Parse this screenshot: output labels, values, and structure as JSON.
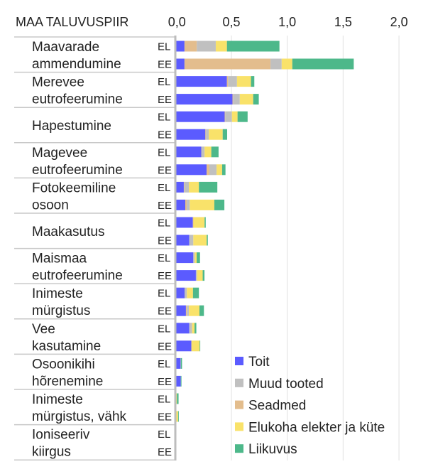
{
  "chart_data": {
    "type": "bar",
    "orientation": "horizontal",
    "stacked": true,
    "row_header": "MAA TALUVUSPIIR",
    "xlim": [
      0,
      2.0
    ],
    "x_ticks": [
      "0,0",
      "0,5",
      "1,0",
      "1,5",
      "2,0"
    ],
    "x_tick_values": [
      0,
      0.5,
      1.0,
      1.5,
      2.0
    ],
    "grid": true,
    "legend_position": "bottom-right",
    "sub_labels": [
      "EL",
      "EE"
    ],
    "categories": [
      {
        "label": [
          "Maavarade",
          "ammendumine"
        ]
      },
      {
        "label": [
          "Merevee",
          "eutrofeerumine"
        ]
      },
      {
        "label": [
          "Hapestumine"
        ]
      },
      {
        "label": [
          "Magevee",
          "eutrofeerumine"
        ]
      },
      {
        "label": [
          "Fotokeemiline",
          "osoon"
        ]
      },
      {
        "label": [
          "Maakasutus"
        ]
      },
      {
        "label": [
          "Maismaa",
          "eutrofeerumine"
        ]
      },
      {
        "label": [
          "Inimeste",
          "mürgistus"
        ]
      },
      {
        "label": [
          "Vee",
          "kasutamine"
        ]
      },
      {
        "label": [
          "Osoonikihi",
          "hõrenemine"
        ]
      },
      {
        "label": [
          "Inimeste",
          "mürgistus, vähk"
        ]
      },
      {
        "label": [
          "Ioniseeriv",
          "kiirgus"
        ]
      }
    ],
    "series": [
      {
        "name": "Toit",
        "color": "#5b5bff",
        "EL": [
          0.08,
          0.46,
          0.44,
          0.23,
          0.074,
          0.155,
          0.159,
          0.081,
          0.123,
          0.045,
          0.0,
          0.0
        ],
        "EE": [
          0.08,
          0.51,
          0.267,
          0.278,
          0.087,
          0.123,
          0.182,
          0.093,
          0.142,
          0.047,
          0.0,
          0.0
        ]
      },
      {
        "name": "Seadmed",
        "color": "#e3bd8d",
        "EL": [
          0.11,
          0.01,
          0.005,
          0.0,
          0.005,
          0.005,
          0.0,
          0.0,
          0.0,
          0.0,
          0.0,
          0.0
        ],
        "EE": [
          0.77,
          0.005,
          0.005,
          0.025,
          0.013,
          0.0,
          0.0,
          0.008,
          0.0,
          0.0,
          0.0,
          0.0
        ]
      },
      {
        "name": "Muud tooted",
        "color": "#c0c0c0",
        "EL": [
          0.17,
          0.08,
          0.06,
          0.03,
          0.04,
          0.0,
          0.013,
          0.02,
          0.025,
          0.003,
          0.0,
          0.0
        ],
        "EE": [
          0.1,
          0.06,
          0.025,
          0.064,
          0.027,
          0.036,
          0.011,
          0.018,
          0.0,
          0.0,
          0.006,
          0.0
        ]
      },
      {
        "name": "Elukoha elekter ja küte",
        "color": "#f9e26a",
        "EL": [
          0.1,
          0.125,
          0.05,
          0.06,
          0.09,
          0.1,
          0.017,
          0.055,
          0.022,
          0.0,
          0.012,
          0.0
        ],
        "EE": [
          0.095,
          0.12,
          0.125,
          0.05,
          0.22,
          0.12,
          0.05,
          0.095,
          0.074,
          0.0,
          0.017,
          0.0
        ]
      },
      {
        "name": "Liikuvus",
        "color": "#4db88a",
        "EL": [
          0.47,
          0.03,
          0.09,
          0.065,
          0.165,
          0.01,
          0.03,
          0.053,
          0.016,
          0.01,
          0.015,
          0.0
        ],
        "EE": [
          0.55,
          0.05,
          0.04,
          0.03,
          0.09,
          0.01,
          0.016,
          0.04,
          0.004,
          0.006,
          0.006,
          0.0
        ]
      }
    ],
    "legend_order": [
      "Toit",
      "Muud tooted",
      "Seadmed",
      "Elukoha elekter ja küte",
      "Liikuvus"
    ]
  }
}
